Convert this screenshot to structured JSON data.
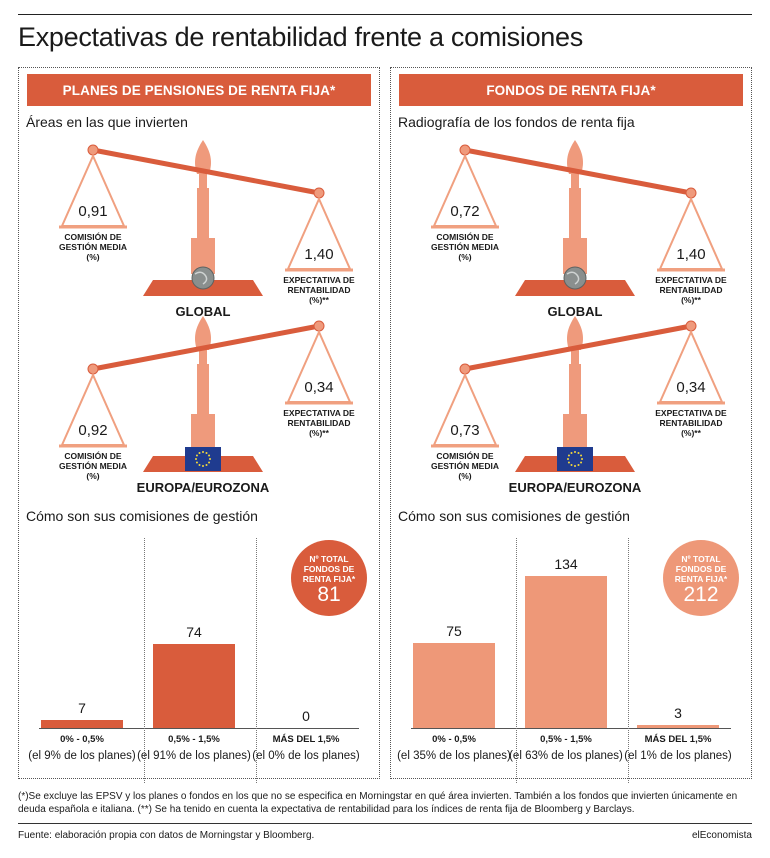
{
  "title": "Expectativas de rentabilidad frente a comisiones",
  "colors": {
    "pension": "#d95c3c",
    "pension_light": "#f0a080",
    "fund": "#ee9878",
    "fund_dark": "#d95c3c",
    "stand": "#ef9a7c"
  },
  "labels": {
    "comision": [
      "COMISIÓN DE",
      "GESTIÓN MEDIA",
      "(%)"
    ],
    "expectativa": [
      "EXPECTATIVA DE",
      "RENTABILIDAD",
      "(%)**"
    ],
    "global": "GLOBAL",
    "europa": "EUROPA/EUROZONA",
    "badge_label": [
      "Nº TOTAL",
      "FONDOS DE",
      "RENTA FIJA*"
    ]
  },
  "panels": [
    {
      "header": "PLANES DE PENSIONES DE RENTA FIJA*",
      "section1": "Áreas en las que invierten",
      "global": {
        "comision": "0,91",
        "expectativa": "1,40"
      },
      "europa": {
        "comision": "0,92",
        "expectativa": "0,34"
      },
      "section2": "Cómo son sus comisiones de gestión",
      "badge_total": "81",
      "bars": [
        {
          "category": "0% - 0,5%",
          "value": 7,
          "value_label": "7",
          "note": "(el 9% de los planes)"
        },
        {
          "category": "0,5% - 1,5%",
          "value": 74,
          "value_label": "74",
          "note": "(el 91% de los planes)"
        },
        {
          "category": "MÁS DEL 1,5%",
          "value": 0,
          "value_label": "0",
          "note": "(el 0% de los planes)"
        }
      ]
    },
    {
      "header": "FONDOS DE RENTA FIJA*",
      "section1": "Radiografía de los fondos de renta fija",
      "global": {
        "comision": "0,72",
        "expectativa": "1,40"
      },
      "europa": {
        "comision": "0,73",
        "expectativa": "0,34"
      },
      "section2": "Cómo son sus comisiones de gestión",
      "badge_total": "212",
      "bars": [
        {
          "category": "0% - 0,5%",
          "value": 75,
          "value_label": "75",
          "note": "(el 35% de los planes)"
        },
        {
          "category": "0,5% - 1,5%",
          "value": 134,
          "value_label": "134",
          "note": "(el 63% de los planes)"
        },
        {
          "category": "MÁS DEL 1,5%",
          "value": 3,
          "value_label": "3",
          "note": "(el 1% de los planes)"
        }
      ]
    }
  ],
  "chart_data": [
    {
      "type": "bar",
      "title": "Cómo son sus comisiones de gestión",
      "categories": [
        "0% - 0,5%",
        "0,5% - 1,5%",
        "MÁS DEL 1,5%"
      ],
      "values": [
        7,
        74,
        0
      ],
      "ylim": [
        0,
        134
      ]
    },
    {
      "type": "bar",
      "title": "Cómo son sus comisiones de gestión",
      "categories": [
        "0% - 0,5%",
        "0,5% - 1,5%",
        "MÁS DEL 1,5%"
      ],
      "values": [
        75,
        134,
        3
      ],
      "ylim": [
        0,
        134
      ]
    }
  ],
  "footnote": "(*)Se excluye las EPSV y los planes o fondos en los que no se especifica en Morningstar en qué área invierten. También a los fondos que invierten únicamente en deuda española e italiana. (**) Se ha tenido en cuenta la expectativa de rentabilidad para los índices de renta fija de Bloomberg y Barclays.",
  "source": "Fuente: elaboración propia con datos de Morningstar y Bloomberg.",
  "brand": "elEconomista"
}
